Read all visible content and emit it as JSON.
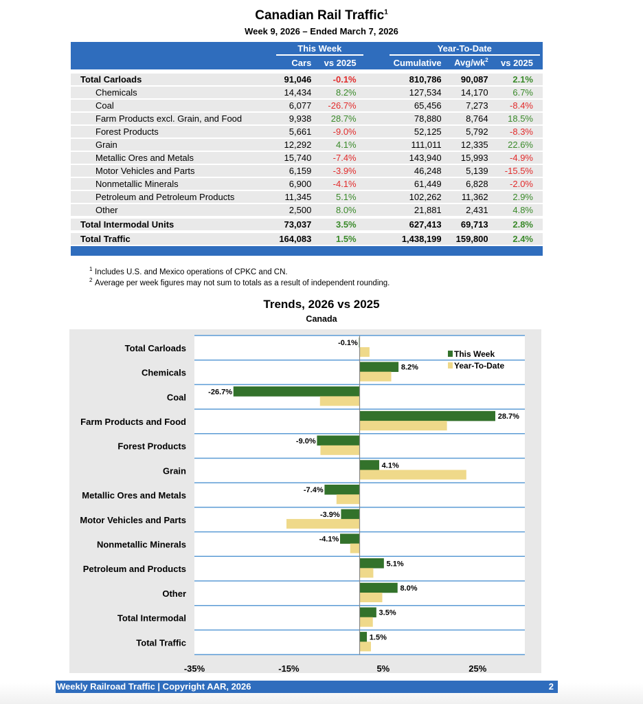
{
  "header": {
    "title": "Canadian Rail Traffic",
    "title_sup": "1",
    "subtitle": "Week 9, 2026 – Ended March 7, 2026"
  },
  "table": {
    "group_this_week": "This Week",
    "group_ytd": "Year-To-Date",
    "columns": [
      "Cars",
      "vs 2025",
      "Cumulative",
      "Avg/wk",
      "vs 2025"
    ],
    "avg_sup": "2",
    "rows": [
      {
        "label": "Total Carloads",
        "cars": "91,046",
        "vs": "-0.1%",
        "cum": "810,786",
        "avg": "90,087",
        "ytdvs": "2.1%",
        "bold": true
      },
      {
        "label": "Chemicals",
        "cars": "14,434",
        "vs": "8.2%",
        "cum": "127,534",
        "avg": "14,170",
        "ytdvs": "6.7%"
      },
      {
        "label": "Coal",
        "cars": "6,077",
        "vs": "-26.7%",
        "cum": "65,456",
        "avg": "7,273",
        "ytdvs": "-8.4%"
      },
      {
        "label": "Farm Products excl. Grain, and Food",
        "cars": "9,938",
        "vs": "28.7%",
        "cum": "78,880",
        "avg": "8,764",
        "ytdvs": "18.5%"
      },
      {
        "label": "Forest Products",
        "cars": "5,661",
        "vs": "-9.0%",
        "cum": "52,125",
        "avg": "5,792",
        "ytdvs": "-8.3%"
      },
      {
        "label": "Grain",
        "cars": "12,292",
        "vs": "4.1%",
        "cum": "111,011",
        "avg": "12,335",
        "ytdvs": "22.6%"
      },
      {
        "label": "Metallic Ores and Metals",
        "cars": "15,740",
        "vs": "-7.4%",
        "cum": "143,940",
        "avg": "15,993",
        "ytdvs": "-4.9%"
      },
      {
        "label": "Motor Vehicles and Parts",
        "cars": "6,159",
        "vs": "-3.9%",
        "cum": "46,248",
        "avg": "5,139",
        "ytdvs": "-15.5%"
      },
      {
        "label": "Nonmetallic Minerals",
        "cars": "6,900",
        "vs": "-4.1%",
        "cum": "61,449",
        "avg": "6,828",
        "ytdvs": "-2.0%"
      },
      {
        "label": "Petroleum and Petroleum Products",
        "cars": "11,345",
        "vs": "5.1%",
        "cum": "102,262",
        "avg": "11,362",
        "ytdvs": "2.9%"
      },
      {
        "label": "Other",
        "cars": "2,500",
        "vs": "8.0%",
        "cum": "21,881",
        "avg": "2,431",
        "ytdvs": "4.8%"
      },
      {
        "label": "Total Intermodal Units",
        "cars": "73,037",
        "vs": "3.5%",
        "cum": "627,413",
        "avg": "69,713",
        "ytdvs": "2.8%",
        "bold": true
      },
      {
        "label": "Total Traffic",
        "cars": "164,083",
        "vs": "1.5%",
        "cum": "1,438,199",
        "avg": "159,800",
        "ytdvs": "2.4%",
        "bold": true
      }
    ]
  },
  "footnotes": [
    {
      "mark": "1",
      "text": "Includes U.S. and Mexico operations of CPKC and CN."
    },
    {
      "mark": "2",
      "text": "Average per week figures may not sum to totals as a result of independent rounding."
    }
  ],
  "colors": {
    "blue": "#2f6dbd",
    "green": "#33722b",
    "yellow": "#efd98a",
    "pos": "#3a8a2a",
    "neg": "#e22b2b",
    "grid": "#5b9bd5"
  },
  "chart_data": {
    "type": "bar",
    "orientation": "horizontal",
    "title": "Trends, 2026 vs 2025",
    "subtitle": "Canada",
    "categories": [
      "Total Carloads",
      "Chemicals",
      "Coal",
      "Farm Products and Food",
      "Forest Products",
      "Grain",
      "Metallic Ores and Metals",
      "Motor Vehicles and Parts",
      "Nonmetallic Minerals",
      "Petroleum and Products",
      "Other",
      "Total Intermodal",
      "Total Traffic"
    ],
    "series": [
      {
        "name": "This Week",
        "values": [
          -0.1,
          8.2,
          -26.7,
          28.7,
          -9.0,
          4.1,
          -7.4,
          -3.9,
          -4.1,
          5.1,
          8.0,
          3.5,
          1.5
        ],
        "labels": [
          "-0.1%",
          "8.2%",
          "-26.7%",
          "28.7%",
          "-9.0%",
          "4.1%",
          "-7.4%",
          "-3.9%",
          "-4.1%",
          "5.1%",
          "8.0%",
          "3.5%",
          "1.5%"
        ]
      },
      {
        "name": "Year-To-Date",
        "values": [
          2.1,
          6.7,
          -8.4,
          18.5,
          -8.3,
          22.6,
          -4.9,
          -15.5,
          -2.0,
          2.9,
          4.8,
          2.8,
          2.4
        ]
      }
    ],
    "xlim": [
      -35,
      35
    ],
    "xticks": [
      -35,
      -15,
      5,
      25
    ],
    "xtick_labels": [
      "-35%",
      "-15%",
      "5%",
      "25%"
    ],
    "legend": "top-right",
    "grid": "horizontal"
  },
  "footer": {
    "text": "Weekly Railroad Traffic | Copyright AAR, 2026",
    "page": "2"
  }
}
